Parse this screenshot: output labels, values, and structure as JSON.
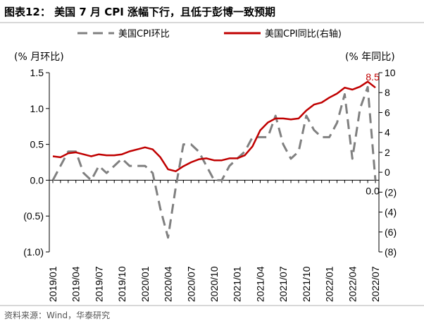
{
  "chart_data": {
    "type": "line",
    "title": "图表12：  美国 7 月 CPI 涨幅下行，且低于彭博一致预期",
    "source": "资料来源：Wind，华泰研究",
    "left_unit": "(% 月环比)",
    "right_unit": "(% 年同比)",
    "x": [
      "2019/01",
      "2019/02",
      "2019/03",
      "2019/04",
      "2019/05",
      "2019/06",
      "2019/07",
      "2019/08",
      "2019/09",
      "2019/10",
      "2019/11",
      "2019/12",
      "2020/01",
      "2020/02",
      "2020/03",
      "2020/04",
      "2020/05",
      "2020/06",
      "2020/07",
      "2020/08",
      "2020/09",
      "2020/10",
      "2020/11",
      "2020/12",
      "2021/01",
      "2021/02",
      "2021/03",
      "2021/04",
      "2021/05",
      "2021/06",
      "2021/07",
      "2021/08",
      "2021/09",
      "2021/10",
      "2021/11",
      "2021/12",
      "2022/01",
      "2022/02",
      "2022/03",
      "2022/04",
      "2022/05",
      "2022/06",
      "2022/07"
    ],
    "x_tick_labels": [
      "2019/01",
      "2019/04",
      "2019/07",
      "2019/10",
      "2020/01",
      "2020/04",
      "2020/07",
      "2020/10",
      "2021/01",
      "2021/04",
      "2021/07",
      "2021/10",
      "2022/01",
      "2022/04",
      "2022/07"
    ],
    "left_axis": {
      "ylim": [
        -1.0,
        1.5
      ],
      "ticks": [
        -1.0,
        -0.5,
        0.0,
        0.5,
        1.0,
        1.5
      ],
      "tick_labels": [
        "(1.0)",
        "(0.5)",
        "0.0",
        "0.5",
        "1.0",
        "1.5"
      ]
    },
    "right_axis": {
      "ylim": [
        -8,
        10
      ],
      "ticks": [
        -8,
        -6,
        -4,
        -2,
        0,
        2,
        4,
        6,
        8,
        10
      ],
      "tick_labels": [
        "(8)",
        "(6)",
        "(4)",
        "(2)",
        "0",
        "2",
        "4",
        "6",
        "8",
        "10"
      ]
    },
    "series": [
      {
        "name": "美国CPI环比",
        "axis": "left",
        "color": "#808080",
        "style": "dashed",
        "values": [
          0.0,
          0.2,
          0.4,
          0.4,
          0.1,
          0.0,
          0.2,
          0.1,
          0.2,
          0.3,
          0.2,
          0.2,
          0.2,
          0.1,
          -0.4,
          -0.8,
          -0.1,
          0.5,
          0.5,
          0.4,
          0.2,
          0.0,
          0.0,
          0.2,
          0.3,
          0.4,
          0.6,
          0.6,
          0.6,
          0.9,
          0.5,
          0.3,
          0.4,
          0.9,
          0.7,
          0.6,
          0.6,
          0.8,
          1.2,
          0.3,
          1.0,
          1.3,
          0.0
        ]
      },
      {
        "name": "美国CPI同比(右轴)",
        "axis": "right",
        "color": "#c00000",
        "style": "solid",
        "values": [
          1.6,
          1.5,
          1.9,
          2.0,
          1.8,
          1.6,
          1.8,
          1.7,
          1.7,
          1.8,
          2.1,
          2.3,
          2.5,
          2.3,
          1.5,
          0.3,
          0.1,
          0.6,
          1.0,
          1.3,
          1.4,
          1.2,
          1.2,
          1.4,
          1.4,
          1.7,
          2.6,
          4.2,
          5.0,
          5.4,
          5.4,
          5.3,
          5.4,
          6.2,
          6.8,
          7.0,
          7.5,
          7.9,
          8.5,
          8.3,
          8.6,
          9.1,
          8.5
        ]
      }
    ],
    "annotations": [
      {
        "text": "8.5",
        "series": "美国CPI同比(右轴)",
        "x": "2022/07",
        "color": "#c00000"
      },
      {
        "text": "0.0",
        "series": "美国CPI环比",
        "x": "2022/07",
        "color": "#000000"
      }
    ],
    "legend": {
      "placement": "top"
    },
    "grid": false
  }
}
